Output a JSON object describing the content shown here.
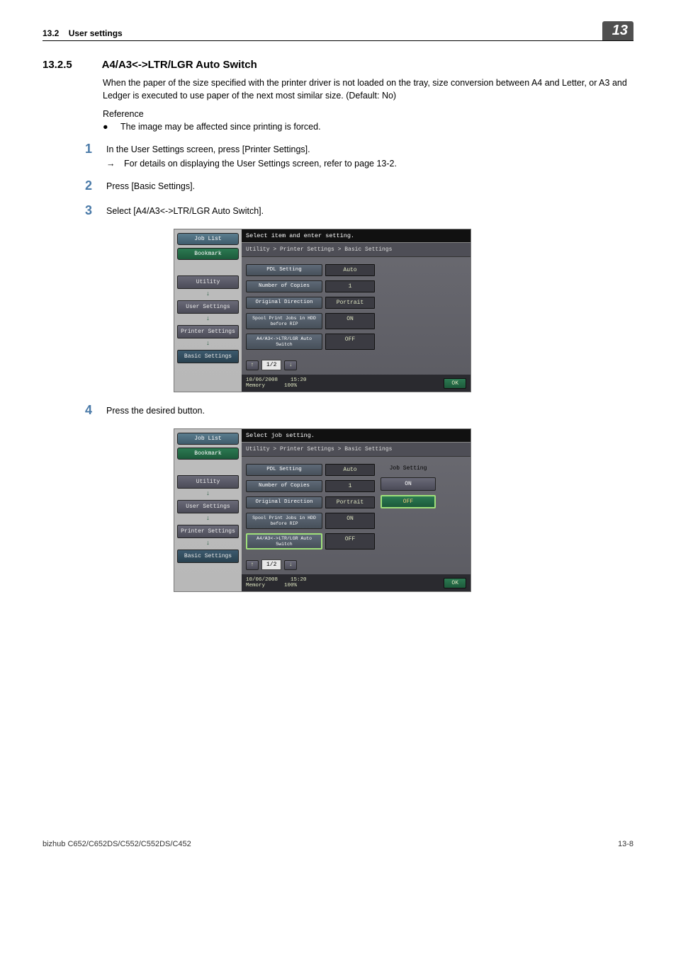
{
  "header": {
    "section_no": "13.2",
    "section_name": "User settings",
    "chapter": "13"
  },
  "title": {
    "number": "13.2.5",
    "text": "A4/A3<->LTR/LGR Auto Switch"
  },
  "intro": "When the paper of the size specified with the printer driver is not loaded on the tray, size conversion between A4 and Letter, or A3 and Ledger is executed to use paper of the next most similar size. (Default: No)",
  "reference_label": "Reference",
  "bullet": "The image may be affected since printing is forced.",
  "steps": {
    "s1": "In the User Settings screen, press [Printer Settings].",
    "s1_sub": "For details on displaying the User Settings screen, refer to page 13-2.",
    "s2": "Press [Basic Settings].",
    "s3": "Select [A4/A3<->LTR/LGR Auto Switch].",
    "s4": "Press the desired button."
  },
  "screen_common": {
    "tabs": {
      "job_list": "Job List",
      "bookmark": "Bookmark"
    },
    "nav": {
      "utility": "Utility",
      "user_settings": "User Settings",
      "printer_settings": "Printer Settings",
      "basic_settings": "Basic Settings"
    },
    "breadcrumb": "Utility > Printer Settings > Basic Settings",
    "rows": {
      "pdl": {
        "label": "PDL Setting",
        "value": "Auto"
      },
      "copies": {
        "label": "Number of Copies",
        "value": "1"
      },
      "orient": {
        "label": "Original Direction",
        "value": "Portrait"
      },
      "spool": {
        "label": "Spool Print Jobs\nin HDD before RIP",
        "value": "ON"
      },
      "autoswitch": {
        "label": "A4/A3<->LTR/LGR\nAuto Switch",
        "value": "OFF"
      }
    },
    "pager": "1/2",
    "status": {
      "date": "10/06/2008",
      "time": "15:20",
      "mem_l": "Memory",
      "mem_v": "100%"
    },
    "ok": "OK"
  },
  "screen2": {
    "instruction": "Select item and enter setting."
  },
  "screen3": {
    "instruction": "Select job setting.",
    "side_title": "Job Setting",
    "on": "ON",
    "off": "OFF"
  },
  "footer": {
    "left": "bizhub C652/C652DS/C552/C552DS/C452",
    "right": "13-8"
  }
}
